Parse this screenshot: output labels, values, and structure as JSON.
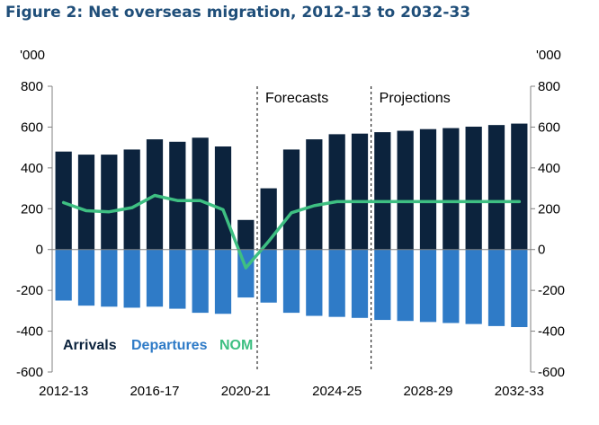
{
  "title": "Figure 2: Net overseas migration, 2012-13 to 2032-33",
  "colors": {
    "arrivals": "#0c233d",
    "departures": "#2f7bc7",
    "nom": "#3ebf82",
    "title": "#1f4e79"
  },
  "chart_data": {
    "type": "bar",
    "unit_left": "'000",
    "unit_right": "'000",
    "categories": [
      "2012-13",
      "2013-14",
      "2014-15",
      "2015-16",
      "2016-17",
      "2017-18",
      "2018-19",
      "2019-20",
      "2020-21",
      "2021-22",
      "2022-23",
      "2023-24",
      "2024-25",
      "2025-26",
      "2026-27",
      "2027-28",
      "2028-29",
      "2029-30",
      "2030-31",
      "2031-32",
      "2032-33"
    ],
    "x_tick_labels": [
      "2012-13",
      "2016-17",
      "2020-21",
      "2024-25",
      "2028-29",
      "2032-33"
    ],
    "x_tick_categories": [
      "2012-13",
      "2016-17",
      "2020-21",
      "2024-25",
      "2028-29",
      "2032-33"
    ],
    "ylim": [
      -600,
      800
    ],
    "yticks": [
      -600,
      -400,
      -200,
      0,
      200,
      400,
      600,
      800
    ],
    "grid": false,
    "legend_position": "bottom-left",
    "series": [
      {
        "name": "Arrivals",
        "kind": "bar",
        "color": "#0c233d",
        "values": [
          480,
          465,
          465,
          490,
          540,
          528,
          548,
          505,
          145,
          300,
          490,
          540,
          565,
          568,
          575,
          582,
          590,
          595,
          602,
          610,
          617
        ]
      },
      {
        "name": "Departures",
        "kind": "bar",
        "color": "#2f7bc7",
        "values": [
          -250,
          -275,
          -280,
          -285,
          -280,
          -290,
          -310,
          -315,
          -235,
          -260,
          -310,
          -325,
          -330,
          -335,
          -345,
          -350,
          -355,
          -360,
          -365,
          -375,
          -380
        ]
      },
      {
        "name": "NOM",
        "kind": "line",
        "color": "#3ebf82",
        "values": [
          230,
          190,
          185,
          205,
          265,
          240,
          240,
          195,
          -90,
          40,
          180,
          215,
          235,
          235,
          235,
          235,
          235,
          235,
          235,
          235,
          235
        ]
      }
    ],
    "annotations": [
      {
        "label": "Forecasts",
        "divider_after": "2020-21"
      },
      {
        "label": "Projections",
        "divider_after": "2025-26"
      }
    ]
  }
}
